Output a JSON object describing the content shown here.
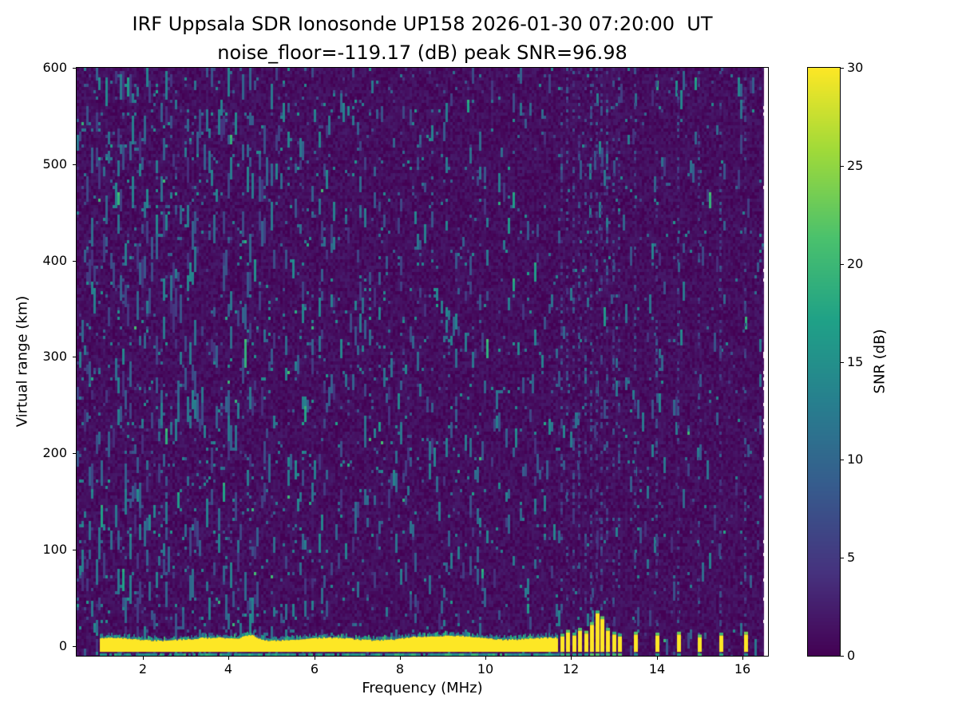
{
  "chart_data": {
    "type": "heatmap",
    "title": "IRF Uppsala SDR Ionosonde UP158 2026-01-30 07:20:00  UT",
    "subtitle": "noise_floor=-119.17 (dB) peak SNR=96.98",
    "station": "UP158",
    "timestamp_ut": "2026-01-30 07:20:00",
    "noise_floor_db": -119.17,
    "peak_snr_db": 96.98,
    "xlabel": "Frequency (MHz)",
    "ylabel": "Virtual range (km)",
    "xlim": [
      0.45,
      16.6
    ],
    "ylim": [
      -10,
      600
    ],
    "xticks": [
      2,
      4,
      6,
      8,
      10,
      12,
      14,
      16
    ],
    "yticks": [
      0,
      100,
      200,
      300,
      400,
      500,
      600
    ],
    "grid": false,
    "colormap": "viridis",
    "colorbar": {
      "label": "SNR (dB)",
      "range": [
        0,
        30
      ],
      "ticks": [
        0,
        5,
        10,
        15,
        20,
        25,
        30
      ],
      "position": "right"
    },
    "sweep": {
      "continuous_band": {
        "freq_start_mhz": 1.0,
        "freq_end_mhz": 11.68,
        "range_km": [
          -6,
          8
        ],
        "snr_db": 30,
        "note": "saturated near-zero virtual range return across the continuous sweep"
      },
      "bottom_echo_line": {
        "freq_start_mhz": 1.0,
        "freq_end_mhz": 11.68,
        "range_km": [
          -9.5,
          -7.5
        ],
        "snr_db": 16
      },
      "spot_frequencies": [
        {
          "f_mhz": 11.78,
          "top_km": 10
        },
        {
          "f_mhz": 11.92,
          "top_km": 14
        },
        {
          "f_mhz": 12.06,
          "top_km": 11
        },
        {
          "f_mhz": 12.2,
          "top_km": 16
        },
        {
          "f_mhz": 12.34,
          "top_km": 13
        },
        {
          "f_mhz": 12.48,
          "top_km": 22
        },
        {
          "f_mhz": 12.6,
          "top_km": 34
        },
        {
          "f_mhz": 12.72,
          "top_km": 28
        },
        {
          "f_mhz": 12.86,
          "top_km": 16
        },
        {
          "f_mhz": 13.0,
          "top_km": 12
        },
        {
          "f_mhz": 13.14,
          "top_km": 10
        },
        {
          "f_mhz": 13.5,
          "top_km": 12
        },
        {
          "f_mhz": 14.0,
          "top_km": 11
        },
        {
          "f_mhz": 14.52,
          "top_km": 12
        },
        {
          "f_mhz": 15.0,
          "top_km": 9
        },
        {
          "f_mhz": 15.5,
          "top_km": 11
        },
        {
          "f_mhz": 16.08,
          "top_km": 12
        }
      ]
    },
    "noise": {
      "seed": 42,
      "background_snr_db": [
        0,
        2
      ],
      "speckle_snr_db": [
        4,
        16
      ],
      "speckle_pattern": "sparse vertical teal streaks over dark purple background, denser below 6 MHz, faint columns above 11.7 MHz"
    }
  }
}
